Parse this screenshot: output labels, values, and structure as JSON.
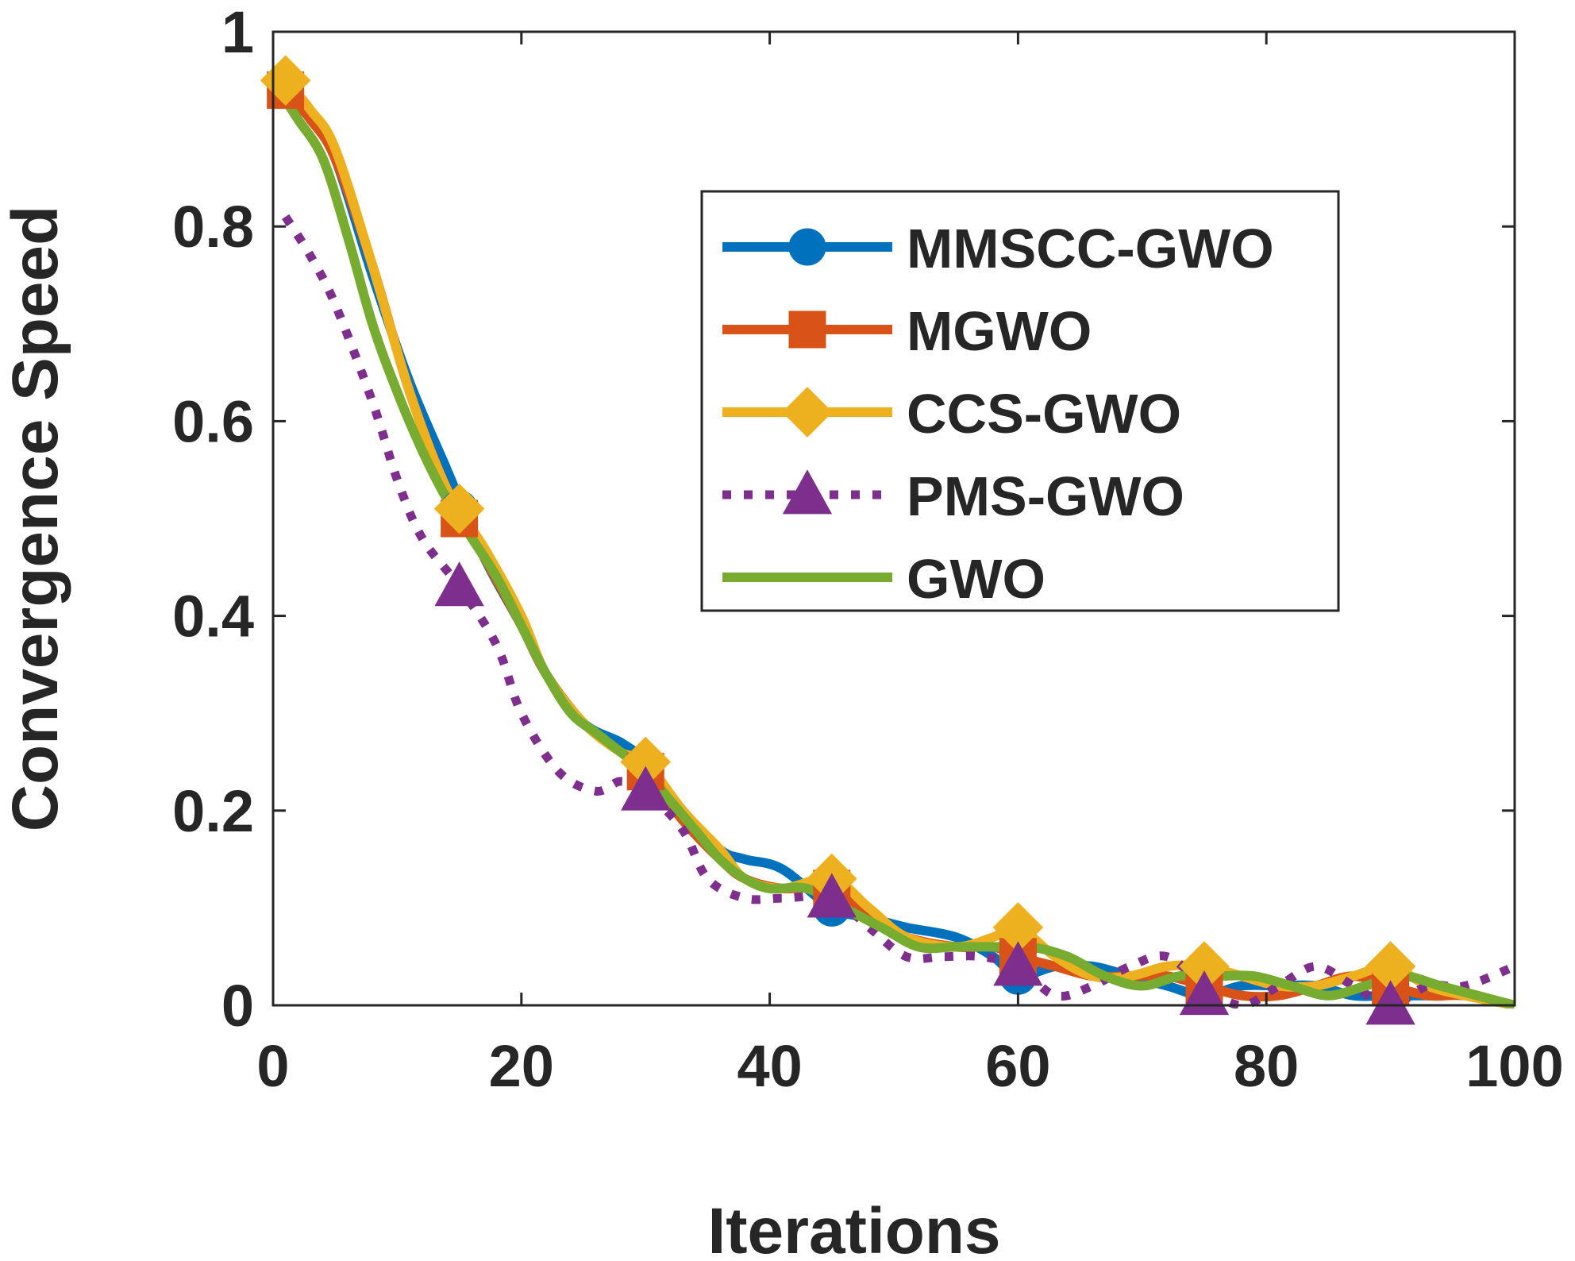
{
  "chart_data": {
    "type": "line",
    "title": "",
    "xlabel": "Iterations",
    "ylabel": "Convergence Speed",
    "xlim": [
      0,
      100
    ],
    "ylim": [
      0,
      1
    ],
    "xticks": [
      0,
      20,
      40,
      60,
      80,
      100
    ],
    "xtick_labels": [
      "0",
      "20",
      "40",
      "60",
      "80",
      "100"
    ],
    "yticks": [
      0,
      0.2,
      0.4,
      0.6,
      0.8,
      1
    ],
    "ytick_labels": [
      "0",
      "0.2",
      "0.4",
      "0.6",
      "0.8",
      "1"
    ],
    "grid": false,
    "legend_position": "top-right",
    "series": [
      {
        "name": "MMSCC-GWO",
        "color": "#0072BD",
        "line": "solid",
        "marker": "circle",
        "x": [
          1,
          3,
          5,
          8,
          11,
          14,
          17,
          20,
          22,
          25,
          28,
          30,
          33,
          36,
          38,
          41,
          45,
          48,
          51,
          55,
          58,
          60,
          63,
          66,
          69,
          72,
          75,
          78,
          81,
          84,
          87,
          90,
          93,
          96,
          100
        ],
        "y": [
          0.94,
          0.91,
          0.87,
          0.75,
          0.64,
          0.55,
          0.46,
          0.39,
          0.34,
          0.29,
          0.27,
          0.25,
          0.2,
          0.16,
          0.15,
          0.14,
          0.1,
          0.09,
          0.08,
          0.07,
          0.05,
          0.03,
          0.04,
          0.04,
          0.03,
          0.02,
          0.01,
          0.02,
          0.02,
          0.02,
          0.01,
          0.01,
          0.01,
          0.01,
          0.0
        ],
        "marker_x": [
          1,
          15,
          30,
          45,
          60,
          75,
          90
        ],
        "marker_y": [
          0.94,
          0.51,
          0.24,
          0.1,
          0.03,
          0.01,
          0.01
        ]
      },
      {
        "name": "MGWO",
        "color": "#D95319",
        "line": "solid",
        "marker": "square",
        "x": [
          1,
          3,
          5,
          8,
          11,
          14,
          17,
          20,
          22,
          25,
          28,
          30,
          33,
          36,
          38,
          41,
          45,
          48,
          51,
          55,
          58,
          60,
          63,
          66,
          69,
          72,
          75,
          78,
          81,
          84,
          87,
          90,
          93,
          96,
          100
        ],
        "y": [
          0.94,
          0.91,
          0.87,
          0.76,
          0.63,
          0.53,
          0.46,
          0.39,
          0.34,
          0.29,
          0.26,
          0.24,
          0.19,
          0.15,
          0.13,
          0.12,
          0.12,
          0.09,
          0.07,
          0.06,
          0.06,
          0.05,
          0.04,
          0.03,
          0.03,
          0.03,
          0.02,
          0.01,
          0.01,
          0.02,
          0.03,
          0.02,
          0.01,
          0.01,
          0.0
        ],
        "marker_x": [
          1,
          15,
          30,
          45,
          60,
          75,
          90
        ],
        "marker_y": [
          0.94,
          0.5,
          0.24,
          0.12,
          0.05,
          0.02,
          0.02
        ]
      },
      {
        "name": "CCS-GWO",
        "color": "#EDB120",
        "line": "solid",
        "marker": "diamond",
        "x": [
          1,
          3,
          5,
          8,
          11,
          14,
          17,
          20,
          22,
          25,
          28,
          30,
          33,
          36,
          38,
          41,
          45,
          48,
          51,
          55,
          58,
          60,
          63,
          66,
          69,
          72,
          75,
          78,
          81,
          84,
          87,
          90,
          93,
          96,
          100
        ],
        "y": [
          0.95,
          0.92,
          0.88,
          0.76,
          0.63,
          0.53,
          0.47,
          0.4,
          0.34,
          0.29,
          0.26,
          0.25,
          0.2,
          0.16,
          0.13,
          0.12,
          0.13,
          0.1,
          0.07,
          0.06,
          0.07,
          0.08,
          0.05,
          0.03,
          0.03,
          0.04,
          0.04,
          0.03,
          0.02,
          0.02,
          0.03,
          0.04,
          0.02,
          0.01,
          0.0
        ],
        "marker_x": [
          1,
          15,
          30,
          45,
          60,
          75,
          90
        ],
        "marker_y": [
          0.95,
          0.51,
          0.25,
          0.13,
          0.08,
          0.04,
          0.04
        ]
      },
      {
        "name": "PMS-GWO",
        "color": "#7E2F8E",
        "line": "dotted",
        "marker": "triangle",
        "x": [
          1,
          3,
          5,
          8,
          10,
          12,
          15,
          18,
          20,
          23,
          26,
          28,
          30,
          33,
          35,
          38,
          41,
          45,
          48,
          51,
          54,
          57,
          60,
          63,
          66,
          69,
          72,
          75,
          78,
          81,
          84,
          87,
          90,
          93,
          96,
          100
        ],
        "y": [
          0.81,
          0.77,
          0.72,
          0.62,
          0.54,
          0.48,
          0.43,
          0.37,
          0.3,
          0.24,
          0.22,
          0.23,
          0.22,
          0.18,
          0.13,
          0.11,
          0.11,
          0.11,
          0.08,
          0.05,
          0.05,
          0.05,
          0.04,
          0.01,
          0.02,
          0.04,
          0.05,
          0.02,
          0.0,
          0.02,
          0.04,
          0.02,
          0.0,
          0.02,
          0.02,
          0.04
        ],
        "marker_x": [
          15,
          30,
          45,
          60,
          75,
          90
        ],
        "marker_y": [
          0.43,
          0.22,
          0.11,
          0.04,
          0.01,
          0.0
        ]
      },
      {
        "name": "GWO",
        "color": "#77AC30",
        "line": "solid",
        "marker": "none",
        "x": [
          1,
          2,
          4,
          6,
          8,
          10,
          12,
          14,
          16,
          18,
          20,
          22,
          24,
          26,
          28,
          30,
          32,
          34,
          36,
          38,
          40,
          43,
          46,
          49,
          52,
          55,
          58,
          61,
          64,
          67,
          70,
          73,
          76,
          79,
          82,
          85,
          88,
          91,
          94,
          97,
          100
        ],
        "y": [
          0.93,
          0.91,
          0.87,
          0.79,
          0.7,
          0.63,
          0.57,
          0.52,
          0.48,
          0.44,
          0.39,
          0.34,
          0.3,
          0.28,
          0.26,
          0.24,
          0.21,
          0.18,
          0.15,
          0.13,
          0.12,
          0.12,
          0.1,
          0.08,
          0.06,
          0.06,
          0.06,
          0.06,
          0.05,
          0.03,
          0.02,
          0.03,
          0.03,
          0.03,
          0.02,
          0.01,
          0.02,
          0.03,
          0.02,
          0.01,
          0.0
        ]
      }
    ]
  }
}
